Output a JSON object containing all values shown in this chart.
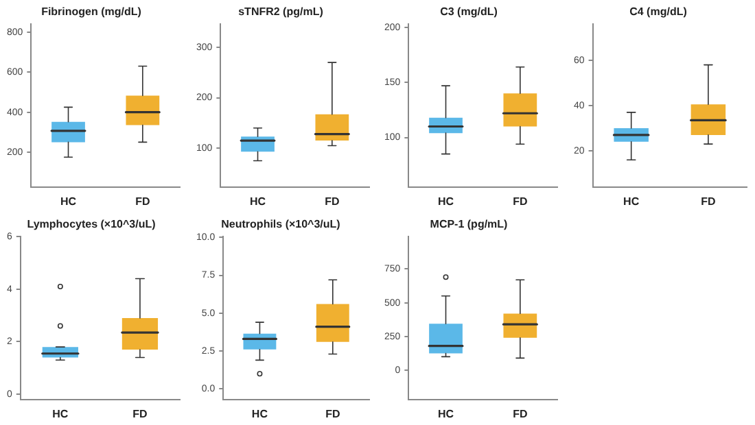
{
  "chart_data": [
    {
      "type": "box",
      "title": "Fibrinogen (mg/dL)",
      "categories": [
        "HC",
        "FD"
      ],
      "colors": [
        "#5bb8e8",
        "#f0b030"
      ],
      "ylim": [
        26,
        840
      ],
      "yticks": [
        200,
        400,
        600,
        800
      ],
      "grid": false,
      "legend": false,
      "boxes": [
        {
          "low": 175,
          "q1": 250,
          "median": 307,
          "q3": 352,
          "high": 425
        },
        {
          "low": 250,
          "q1": 335,
          "median": 400,
          "q3": 483,
          "high": 630
        }
      ]
    },
    {
      "type": "box",
      "title": "sTNFR2 (pg/mL)",
      "categories": [
        "HC",
        "FD"
      ],
      "colors": [
        "#5bb8e8",
        "#f0b030"
      ],
      "ylim": [
        23,
        346
      ],
      "yticks": [
        100,
        200,
        300
      ],
      "grid": false,
      "legend": false,
      "boxes": [
        {
          "low": 75,
          "q1": 93,
          "median": 115,
          "q3": 123,
          "high": 140
        },
        {
          "low": 105,
          "q1": 115,
          "median": 128,
          "q3": 167,
          "high": 270
        }
      ]
    },
    {
      "type": "box",
      "title": "C3 (mg/dL)",
      "categories": [
        "HC",
        "FD"
      ],
      "colors": [
        "#5bb8e8",
        "#f0b030"
      ],
      "ylim": [
        55,
        203
      ],
      "yticks": [
        100,
        150,
        200
      ],
      "grid": false,
      "legend": false,
      "boxes": [
        {
          "low": 85,
          "q1": 104,
          "median": 110,
          "q3": 118,
          "high": 147
        },
        {
          "low": 94,
          "q1": 110,
          "median": 122,
          "q3": 140,
          "high": 164
        }
      ]
    },
    {
      "type": "box",
      "title": "C4 (mg/dL)",
      "categories": [
        "HC",
        "FD"
      ],
      "colors": [
        "#5bb8e8",
        "#f0b030"
      ],
      "ylim": [
        4,
        76
      ],
      "yticks": [
        20,
        40,
        60
      ],
      "grid": false,
      "legend": false,
      "boxes": [
        {
          "low": 16,
          "q1": 24,
          "median": 27,
          "q3": 30,
          "high": 37
        },
        {
          "low": 23,
          "q1": 27,
          "median": 33.5,
          "q3": 40.5,
          "high": 58
        }
      ]
    },
    {
      "type": "box",
      "title": "Lymphocytes (×10^3/uL)",
      "categories": [
        "HC",
        "FD"
      ],
      "colors": [
        "#5bb8e8",
        "#f0b030"
      ],
      "ylim": [
        -0.2,
        6
      ],
      "yticks": [
        0,
        2,
        4,
        6
      ],
      "grid": false,
      "legend": false,
      "boxes": [
        {
          "low": 1.3,
          "q1": 1.4,
          "median": 1.55,
          "q3": 1.8,
          "high": 1.8,
          "outliers": [
            2.6,
            4.1
          ]
        },
        {
          "low": 1.4,
          "q1": 1.7,
          "median": 2.35,
          "q3": 2.9,
          "high": 4.4
        }
      ]
    },
    {
      "type": "box",
      "title": "Neutrophils (×10^3/uL)",
      "categories": [
        "HC",
        "FD"
      ],
      "colors": [
        "#5bb8e8",
        "#f0b030"
      ],
      "ylim": [
        -0.7,
        10.05
      ],
      "yticks": [
        {
          "value": 0,
          "label": "0.0"
        },
        2.5,
        {
          "value": 5,
          "label": "5.0"
        },
        7.5,
        {
          "value": 10,
          "label": "10.0"
        }
      ],
      "grid": false,
      "legend": false,
      "boxes": [
        {
          "low": 1.9,
          "q1": 2.6,
          "median": 3.3,
          "q3": 3.65,
          "high": 4.4,
          "outliers": [
            1.0
          ]
        },
        {
          "low": 2.3,
          "q1": 3.1,
          "median": 4.1,
          "q3": 5.6,
          "high": 7.2
        }
      ]
    },
    {
      "type": "box",
      "title": "MCP-1 (pg/mL)",
      "categories": [
        "HC",
        "FD"
      ],
      "colors": [
        "#5bb8e8",
        "#f0b030"
      ],
      "ylim": [
        -217,
        990
      ],
      "yticks": [
        0,
        250,
        500,
        750
      ],
      "grid": false,
      "legend": false,
      "boxes": [
        {
          "low": 100,
          "q1": 125,
          "median": 180,
          "q3": 345,
          "high": 550,
          "outliers": [
            690
          ]
        },
        {
          "low": 90,
          "q1": 240,
          "median": 340,
          "q3": 420,
          "high": 670
        }
      ]
    }
  ]
}
